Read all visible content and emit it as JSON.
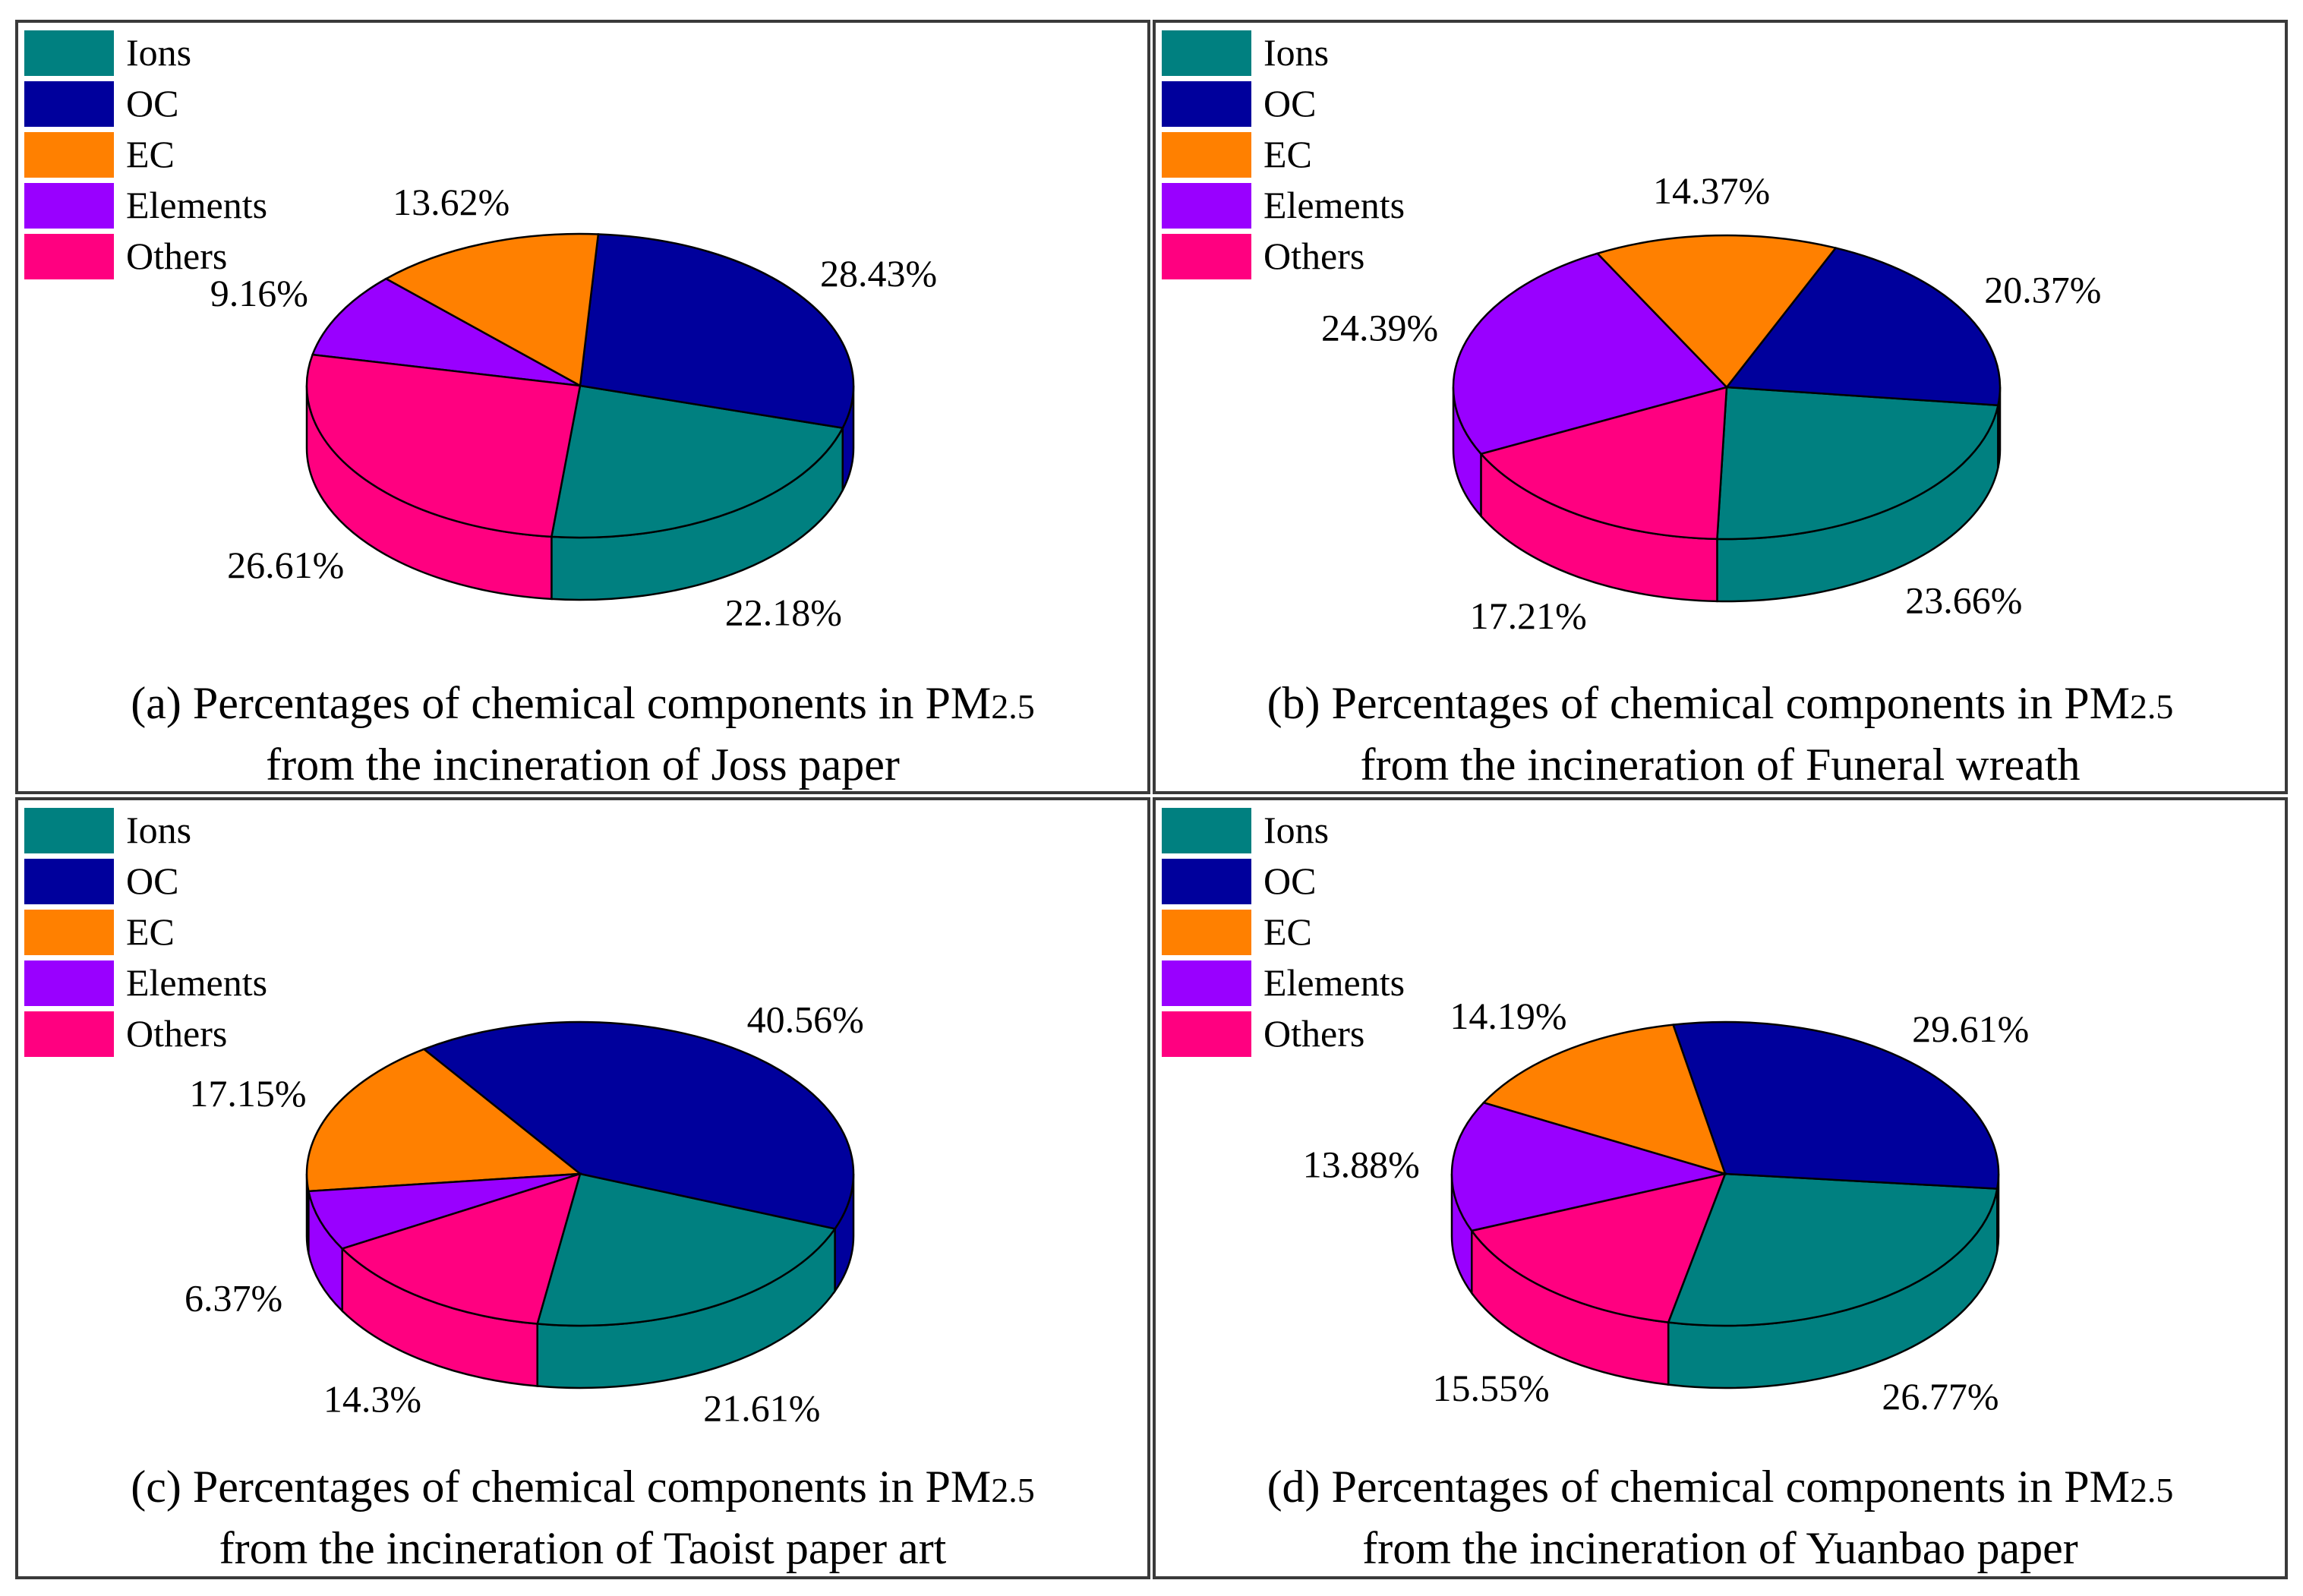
{
  "figure": {
    "legend_labels": [
      "Ions",
      "OC",
      "EC",
      "Elements",
      "Others"
    ],
    "colors": {
      "Ions": "#008080",
      "OC": "#00009c",
      "EC": "#ff8000",
      "Elements": "#9900ff",
      "Others": "#ff0080"
    }
  },
  "chart_data": [
    {
      "type": "pie",
      "title_line1_prefix": "(a) Percentages of chemical components in PM",
      "title_sub": "2.5",
      "title_line2": "from the incineration of Joss paper",
      "categories": [
        "Ions",
        "OC",
        "EC",
        "Elements",
        "Others"
      ],
      "values": [
        22.18,
        28.43,
        13.62,
        9.16,
        26.61
      ],
      "labels": [
        "22.18%",
        "28.43%",
        "13.62%",
        "9.16%",
        "26.61%"
      ],
      "legend_placement": "top-left"
    },
    {
      "type": "pie",
      "title_line1_prefix": "(b) Percentages of chemical components in PM",
      "title_sub": "2.5",
      "title_line2": "from the incineration of Funeral wreath",
      "categories": [
        "Ions",
        "OC",
        "EC",
        "Elements",
        "Others"
      ],
      "values": [
        23.66,
        20.37,
        14.37,
        24.39,
        17.21
      ],
      "labels": [
        "23.66%",
        "20.37%",
        "14.37%",
        "24.39%",
        "17.21%"
      ],
      "legend_placement": "top-left"
    },
    {
      "type": "pie",
      "title_line1_prefix": "(c) Percentages of chemical components in PM",
      "title_sub": "2.5",
      "title_line2": "from the incineration of Taoist paper art",
      "categories": [
        "Ions",
        "OC",
        "EC",
        "Elements",
        "Others"
      ],
      "values": [
        21.61,
        40.56,
        17.15,
        6.37,
        14.3
      ],
      "labels": [
        "21.61%",
        "40.56%",
        "17.15%",
        "6.37%",
        "14.3%"
      ],
      "legend_placement": "top-left"
    },
    {
      "type": "pie",
      "title_line1_prefix": "(d) Percentages of chemical components in PM",
      "title_sub": "2.5",
      "title_line2": "from the incineration of Yuanbao paper",
      "categories": [
        "Ions",
        "OC",
        "EC",
        "Elements",
        "Others"
      ],
      "values": [
        26.77,
        29.61,
        14.19,
        13.88,
        15.55
      ],
      "labels": [
        "26.77%",
        "29.61%",
        "14.19%",
        "13.88%",
        "15.55%"
      ],
      "legend_placement": "top-left"
    }
  ]
}
